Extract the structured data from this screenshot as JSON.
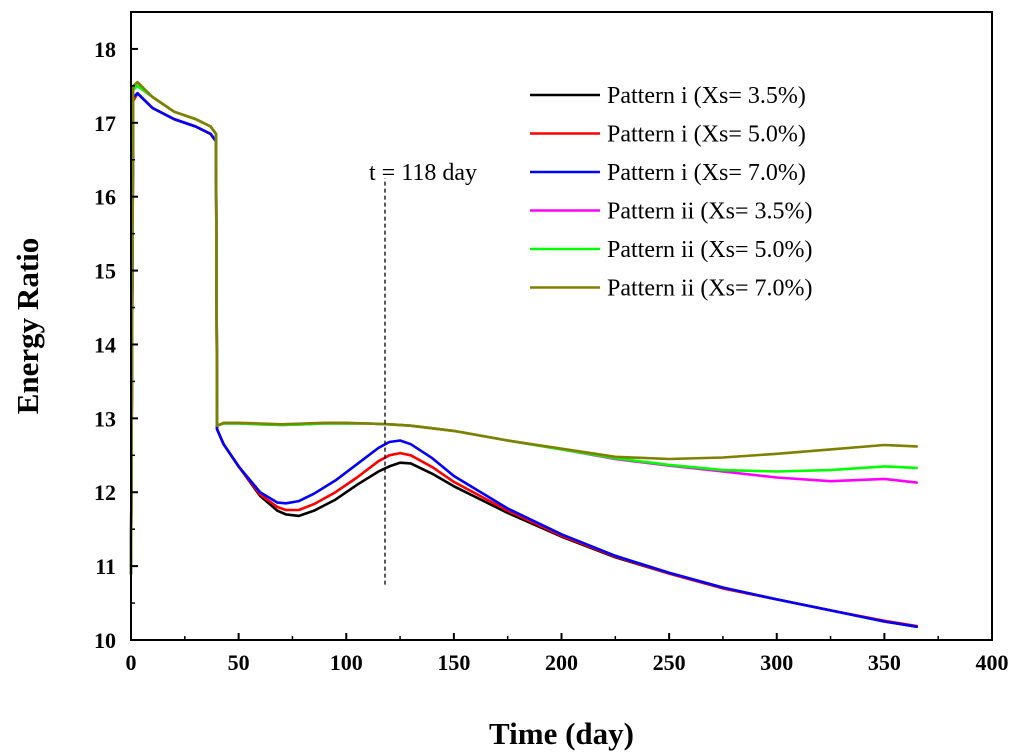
{
  "chart_data": {
    "type": "line",
    "title": "",
    "xlabel": "Time (day)",
    "ylabel": "Energy Ratio",
    "xlim": [
      0,
      400
    ],
    "ylim": [
      10,
      18.5
    ],
    "xticks": [
      0,
      50,
      100,
      150,
      200,
      250,
      300,
      350,
      400
    ],
    "yticks": [
      10,
      11,
      12,
      13,
      14,
      15,
      16,
      17,
      18
    ],
    "grid": false,
    "legend_position": "top-right",
    "annotation": {
      "text": "t = 118 day",
      "x": 118,
      "y_from": 10.75,
      "y_to": 16.25
    },
    "series": [
      {
        "name": "Pattern i (Xs= 3.5%)",
        "color": "#000000",
        "x": [
          0,
          1,
          3,
          10,
          20,
          30,
          37,
          39.5,
          40,
          43,
          50,
          60,
          68,
          72,
          78,
          85,
          95,
          105,
          115,
          120,
          125,
          130,
          140,
          150,
          175,
          200,
          225,
          250,
          275,
          300,
          325,
          350,
          365
        ],
        "y": [
          10.9,
          17.3,
          17.4,
          17.2,
          17.05,
          16.95,
          16.85,
          16.75,
          12.85,
          12.65,
          12.35,
          11.95,
          11.75,
          11.7,
          11.68,
          11.75,
          11.9,
          12.1,
          12.28,
          12.35,
          12.4,
          12.39,
          12.25,
          12.08,
          11.72,
          11.4,
          11.12,
          10.9,
          10.7,
          10.55,
          10.4,
          10.25,
          10.18
        ]
      },
      {
        "name": "Pattern i (Xs= 5.0%)",
        "color": "#ff0000",
        "x": [
          0,
          1,
          3,
          10,
          20,
          30,
          37,
          39.5,
          40,
          43,
          50,
          60,
          68,
          72,
          78,
          85,
          95,
          105,
          115,
          120,
          125,
          130,
          140,
          150,
          175,
          200,
          225,
          250,
          275,
          300,
          325,
          350,
          365
        ],
        "y": [
          10.9,
          17.3,
          17.4,
          17.2,
          17.05,
          16.95,
          16.85,
          16.75,
          12.85,
          12.65,
          12.35,
          11.97,
          11.8,
          11.76,
          11.76,
          11.84,
          12.0,
          12.2,
          12.42,
          12.5,
          12.53,
          12.5,
          12.34,
          12.14,
          11.75,
          11.41,
          11.13,
          10.9,
          10.7,
          10.55,
          10.4,
          10.26,
          10.19
        ]
      },
      {
        "name": "Pattern i (Xs= 7.0%)",
        "color": "#0000ff",
        "x": [
          0,
          1,
          3,
          10,
          20,
          30,
          37,
          39.5,
          40,
          43,
          50,
          60,
          68,
          72,
          78,
          85,
          95,
          105,
          115,
          120,
          125,
          130,
          140,
          150,
          175,
          200,
          225,
          250,
          275,
          300,
          325,
          350,
          365
        ],
        "y": [
          10.9,
          17.35,
          17.4,
          17.2,
          17.05,
          16.95,
          16.85,
          16.75,
          12.85,
          12.65,
          12.35,
          12.0,
          11.86,
          11.85,
          11.88,
          11.98,
          12.16,
          12.38,
          12.6,
          12.68,
          12.7,
          12.65,
          12.46,
          12.22,
          11.78,
          11.43,
          11.14,
          10.91,
          10.71,
          10.55,
          10.4,
          10.25,
          10.18
        ]
      },
      {
        "name": "Pattern ii (Xs= 3.5%)",
        "color": "#ff00ff",
        "x": [
          0,
          1,
          3,
          10,
          20,
          30,
          37,
          39.5,
          40,
          43,
          50,
          60,
          70,
          80,
          90,
          100,
          110,
          120,
          130,
          150,
          175,
          200,
          225,
          250,
          275,
          300,
          325,
          350,
          365
        ],
        "y": [
          10.9,
          17.45,
          17.5,
          17.35,
          17.15,
          17.05,
          16.95,
          16.85,
          12.9,
          12.93,
          12.93,
          12.92,
          12.91,
          12.92,
          12.93,
          12.93,
          12.93,
          12.92,
          12.9,
          12.83,
          12.7,
          12.58,
          12.45,
          12.36,
          12.28,
          12.2,
          12.15,
          12.18,
          12.13
        ]
      },
      {
        "name": "Pattern ii (Xs= 5.0%)",
        "color": "#00ff00",
        "x": [
          0,
          1,
          3,
          10,
          20,
          30,
          37,
          39.5,
          40,
          43,
          50,
          60,
          70,
          80,
          90,
          100,
          110,
          120,
          130,
          150,
          175,
          200,
          225,
          250,
          275,
          300,
          325,
          350,
          365
        ],
        "y": [
          10.9,
          17.45,
          17.5,
          17.35,
          17.15,
          17.05,
          16.95,
          16.85,
          12.9,
          12.93,
          12.93,
          12.92,
          12.91,
          12.92,
          12.93,
          12.93,
          12.93,
          12.92,
          12.9,
          12.83,
          12.7,
          12.58,
          12.46,
          12.37,
          12.3,
          12.28,
          12.3,
          12.35,
          12.33
        ]
      },
      {
        "name": "Pattern ii (Xs= 7.0%)",
        "color": "#808000",
        "x": [
          0,
          1,
          3,
          10,
          20,
          30,
          37,
          39.5,
          40,
          43,
          50,
          60,
          70,
          80,
          90,
          100,
          110,
          120,
          130,
          150,
          175,
          200,
          225,
          250,
          275,
          300,
          325,
          350,
          365
        ],
        "y": [
          10.9,
          17.5,
          17.55,
          17.35,
          17.15,
          17.05,
          16.95,
          16.85,
          12.9,
          12.94,
          12.94,
          12.93,
          12.92,
          12.93,
          12.94,
          12.94,
          12.93,
          12.92,
          12.9,
          12.83,
          12.7,
          12.59,
          12.48,
          12.45,
          12.47,
          12.52,
          12.58,
          12.64,
          12.62
        ]
      }
    ]
  }
}
